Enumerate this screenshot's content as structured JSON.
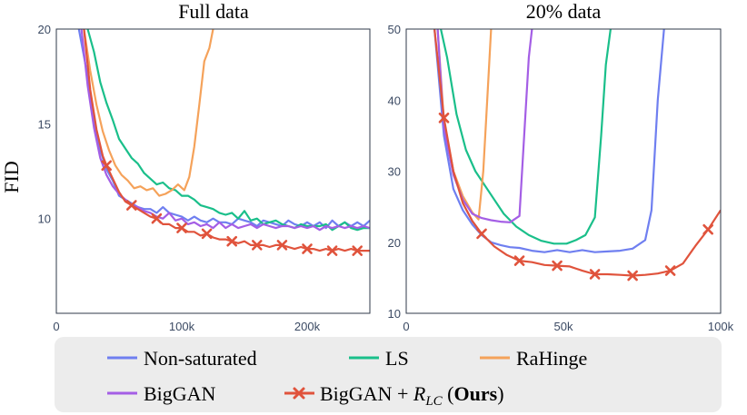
{
  "y_axis_title": "FID",
  "chart_data": [
    {
      "type": "line",
      "title": "Full data",
      "xlabel": "",
      "ylabel": "FID",
      "xlim": [
        0,
        250000
      ],
      "ylim": [
        5,
        20
      ],
      "xticks": [
        0,
        100000,
        200000
      ],
      "xtick_labels": [
        "0",
        "100k",
        "200k"
      ],
      "yticks": [
        10,
        15,
        20
      ],
      "ytick_labels": [
        "10",
        "15",
        "20"
      ],
      "series": [
        {
          "name": "Non-saturated",
          "color": "#6f7ff0",
          "marker": "none",
          "x": [
            18000,
            25000,
            30000,
            35000,
            40000,
            45000,
            50000,
            55000,
            60000,
            65000,
            70000,
            75000,
            80000,
            85000,
            90000,
            95000,
            100000,
            105000,
            110000,
            115000,
            120000,
            125000,
            130000,
            135000,
            140000,
            145000,
            150000,
            155000,
            160000,
            165000,
            170000,
            175000,
            180000,
            185000,
            190000,
            195000,
            200000,
            205000,
            210000,
            215000,
            220000,
            225000,
            230000,
            235000,
            240000,
            245000,
            250000
          ],
          "y": [
            20,
            17.5,
            15.2,
            13.6,
            12.6,
            12.0,
            11.2,
            11.0,
            10.8,
            10.6,
            10.5,
            10.5,
            10.3,
            10.6,
            10.3,
            10.2,
            10.1,
            9.9,
            10.1,
            9.9,
            9.8,
            10.0,
            9.8,
            9.8,
            9.7,
            10.0,
            9.9,
            9.8,
            9.6,
            9.9,
            9.8,
            9.7,
            9.6,
            9.9,
            9.7,
            9.6,
            9.8,
            9.6,
            9.8,
            9.5,
            9.9,
            9.6,
            9.8,
            9.6,
            9.8,
            9.6,
            9.9
          ]
        },
        {
          "name": "LS",
          "color": "#1abf8a",
          "marker": "none",
          "x": [
            25000,
            30000,
            35000,
            40000,
            45000,
            50000,
            55000,
            60000,
            65000,
            70000,
            75000,
            80000,
            85000,
            90000,
            95000,
            100000,
            105000,
            110000,
            115000,
            120000,
            125000,
            130000,
            135000,
            140000,
            145000,
            150000,
            155000,
            160000,
            165000,
            170000,
            175000,
            180000,
            185000,
            190000,
            195000,
            200000,
            205000,
            210000,
            215000,
            220000,
            225000,
            230000,
            235000,
            240000,
            245000,
            250000
          ],
          "y": [
            20,
            18.8,
            17.2,
            16.1,
            15.2,
            14.2,
            13.7,
            13.2,
            12.9,
            12.4,
            12.1,
            11.8,
            11.9,
            11.6,
            11.5,
            11.2,
            11.2,
            11.0,
            10.7,
            10.6,
            10.5,
            10.3,
            10.2,
            10.3,
            10.0,
            10.4,
            9.9,
            10.0,
            9.7,
            9.8,
            9.9,
            9.7,
            9.6,
            9.5,
            9.7,
            9.6,
            9.6,
            9.6,
            9.7,
            9.4,
            9.6,
            9.8,
            9.5,
            9.4,
            9.5,
            9.5
          ]
        },
        {
          "name": "RaHinge",
          "color": "#f5a25a",
          "marker": "none",
          "x": [
            22000,
            27000,
            32000,
            37000,
            42000,
            47000,
            52000,
            57000,
            62000,
            67000,
            72000,
            77000,
            82000,
            87000,
            92000,
            97000,
            102000,
            106000,
            110000,
            114000,
            118000,
            122000,
            125000
          ],
          "y": [
            20,
            17.8,
            16.0,
            14.6,
            13.6,
            12.8,
            12.3,
            12.0,
            11.6,
            11.7,
            11.5,
            11.6,
            11.2,
            11.3,
            11.5,
            11.8,
            11.5,
            12.2,
            13.8,
            16.0,
            18.3,
            19.0,
            20
          ]
        },
        {
          "name": "BigGAN",
          "color": "#a45ee5",
          "marker": "none",
          "x": [
            20000,
            25000,
            30000,
            35000,
            40000,
            45000,
            50000,
            55000,
            60000,
            65000,
            70000,
            75000,
            80000,
            85000,
            90000,
            95000,
            100000,
            105000,
            110000,
            115000,
            120000,
            125000,
            130000,
            135000,
            140000,
            145000,
            150000,
            155000,
            160000,
            165000,
            170000,
            175000,
            180000,
            185000,
            190000,
            195000,
            200000,
            205000,
            210000,
            215000,
            220000,
            225000,
            230000,
            235000,
            240000,
            245000,
            250000
          ],
          "y": [
            20,
            17.0,
            14.8,
            13.2,
            12.3,
            11.7,
            11.3,
            11.0,
            10.7,
            10.6,
            10.4,
            10.3,
            10.1,
            10.0,
            10.3,
            9.9,
            10.0,
            9.7,
            9.8,
            9.6,
            9.7,
            9.5,
            9.8,
            9.5,
            9.7,
            9.5,
            9.6,
            9.7,
            9.5,
            9.7,
            9.6,
            9.5,
            9.6,
            9.6,
            9.5,
            9.6,
            9.5,
            9.6,
            9.4,
            9.6,
            9.5,
            9.6,
            9.5,
            9.6,
            9.5,
            9.6,
            9.5
          ]
        },
        {
          "name": "BigGAN + R_LC (Ours)",
          "color": "#e0533c",
          "marker": "x",
          "x": [
            22000,
            27000,
            32000,
            37000,
            40000,
            45000,
            50000,
            55000,
            60000,
            65000,
            70000,
            75000,
            80000,
            85000,
            90000,
            95000,
            100000,
            105000,
            110000,
            115000,
            120000,
            125000,
            130000,
            135000,
            140000,
            145000,
            150000,
            155000,
            160000,
            165000,
            170000,
            175000,
            180000,
            185000,
            190000,
            195000,
            200000,
            205000,
            210000,
            215000,
            220000,
            225000,
            230000,
            235000,
            240000,
            245000,
            250000
          ],
          "y": [
            20,
            16.8,
            14.7,
            13.3,
            12.8,
            12.1,
            11.4,
            10.9,
            10.7,
            10.5,
            10.3,
            10.1,
            10.0,
            9.7,
            9.7,
            9.5,
            9.5,
            9.3,
            9.3,
            9.1,
            9.2,
            9.0,
            8.9,
            8.9,
            8.8,
            8.7,
            8.8,
            8.6,
            8.6,
            8.6,
            8.5,
            8.6,
            8.6,
            8.5,
            8.4,
            8.5,
            8.4,
            8.4,
            8.3,
            8.4,
            8.3,
            8.4,
            8.3,
            8.4,
            8.3,
            8.3,
            8.3
          ],
          "marker_x": [
            40000,
            60000,
            80000,
            100000,
            120000,
            140000,
            160000,
            180000,
            200000,
            220000,
            240000
          ],
          "marker_y": [
            12.8,
            10.7,
            10.0,
            9.5,
            9.2,
            8.8,
            8.6,
            8.6,
            8.4,
            8.3,
            8.3
          ]
        }
      ]
    },
    {
      "type": "line",
      "title": "20% data",
      "xlabel": "",
      "ylabel": "",
      "xlim": [
        0,
        100000
      ],
      "ylim": [
        10,
        50
      ],
      "xticks": [
        0,
        50000,
        100000
      ],
      "xtick_labels": [
        "0",
        "50k",
        "100k"
      ],
      "yticks": [
        10,
        20,
        30,
        40,
        50
      ],
      "ytick_labels": [
        "10",
        "20",
        "30",
        "40",
        "50"
      ],
      "series": [
        {
          "name": "Non-saturated",
          "color": "#6f7ff0",
          "marker": "none",
          "x": [
            9000,
            12000,
            15000,
            18000,
            21000,
            24000,
            27000,
            30000,
            33000,
            36000,
            40000,
            44000,
            48000,
            52000,
            56000,
            60000,
            64000,
            68000,
            72000,
            76000,
            78000,
            80000,
            82000
          ],
          "y": [
            50,
            35.0,
            27.5,
            24.5,
            22.5,
            21.0,
            20.0,
            19.6,
            19.3,
            19.2,
            18.8,
            18.6,
            18.9,
            18.6,
            18.9,
            18.6,
            18.7,
            18.8,
            19.1,
            20.3,
            24.5,
            40.0,
            50
          ]
        },
        {
          "name": "LS",
          "color": "#1abf8a",
          "marker": "none",
          "x": [
            11000,
            13000,
            16000,
            19000,
            22000,
            25000,
            28000,
            31000,
            35000,
            39000,
            43000,
            47000,
            51000,
            54000,
            57000,
            60000,
            62000,
            63500,
            65000
          ],
          "y": [
            50,
            46.0,
            38.0,
            33.0,
            30.0,
            28.0,
            26.0,
            24.0,
            22.2,
            21.0,
            20.2,
            19.8,
            19.8,
            20.3,
            21.0,
            23.5,
            35.0,
            45.0,
            50
          ]
        },
        {
          "name": "RaHinge",
          "color": "#f5a25a",
          "marker": "none",
          "x": [
            10000,
            12000,
            15000,
            18000,
            21000,
            23000,
            24500,
            26000,
            27000
          ],
          "y": [
            50,
            37.0,
            30.0,
            26.5,
            24.2,
            23.2,
            30.0,
            42.0,
            50
          ]
        },
        {
          "name": "BigGAN",
          "color": "#a45ee5",
          "marker": "none",
          "x": [
            10000,
            12000,
            15000,
            18000,
            21000,
            24000,
            27000,
            30000,
            33000,
            36000,
            37500,
            39000,
            40000
          ],
          "y": [
            50,
            36.0,
            29.5,
            26.0,
            24.0,
            23.4,
            23.1,
            22.9,
            22.8,
            23.7,
            35.0,
            46.0,
            50
          ]
        },
        {
          "name": "BigGAN + R_LC (Ours)",
          "color": "#e0533c",
          "marker": "x",
          "x": [
            9000,
            12000,
            15000,
            18000,
            21000,
            24000,
            28000,
            32000,
            36000,
            40000,
            44000,
            48000,
            52000,
            56000,
            60000,
            64000,
            68000,
            72000,
            76000,
            80000,
            84000,
            88000,
            92000,
            96000,
            100000
          ],
          "y": [
            50,
            37.5,
            30.0,
            25.5,
            23.0,
            21.2,
            19.4,
            18.2,
            17.4,
            17.2,
            16.8,
            16.7,
            16.6,
            16.0,
            15.5,
            15.5,
            15.4,
            15.3,
            15.4,
            15.6,
            16.0,
            17.0,
            19.5,
            21.8,
            24.5
          ],
          "marker_x": [
            12000,
            24000,
            36000,
            48000,
            60000,
            72000,
            84000,
            96000
          ],
          "marker_y": [
            37.5,
            21.2,
            17.4,
            16.7,
            15.5,
            15.3,
            16.0,
            21.8
          ]
        }
      ]
    }
  ],
  "legend": {
    "items": [
      {
        "label": "Non-saturated",
        "color": "#6f7ff0",
        "marker": "none"
      },
      {
        "label": "LS",
        "color": "#1abf8a",
        "marker": "none"
      },
      {
        "label": "RaHinge",
        "color": "#f5a25a",
        "marker": "none"
      },
      {
        "label": "BigGAN",
        "color": "#a45ee5",
        "marker": "none"
      },
      {
        "label_main": "BigGAN + ",
        "label_r": "R",
        "label_sub": "LC",
        "label_ours_open": " (",
        "label_ours": "Ours",
        "label_ours_close": ")",
        "color": "#e0533c",
        "marker": "x"
      }
    ]
  }
}
